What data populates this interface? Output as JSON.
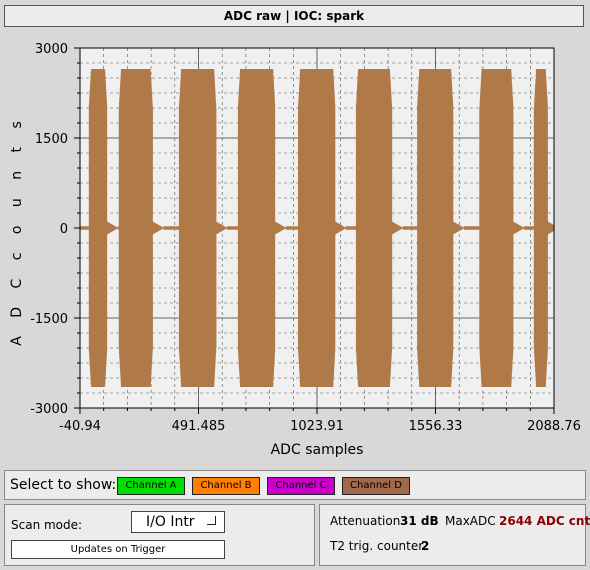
{
  "window": {
    "title": "ADC raw | IOC: spark"
  },
  "chart_data": {
    "type": "line",
    "title": "",
    "xlabel": "ADC samples",
    "ylabel": "A D C   c o u n t s",
    "xlim": [
      -40.94,
      2088.76
    ],
    "ylim": [
      -3000,
      3000
    ],
    "x_ticks": [
      "-40.94",
      "491.485",
      "1023.91",
      "1556.33",
      "2088.76"
    ],
    "y_ticks": [
      "3000",
      "1500",
      "0",
      "-1500",
      "-3000"
    ],
    "grid": true,
    "color": "#b07a48",
    "series": [
      {
        "amplitude": 2650,
        "bursts": [
          [
            0,
            80
          ],
          [
            135,
            285
          ],
          [
            405,
            570
          ],
          [
            670,
            835
          ],
          [
            940,
            1105
          ],
          [
            1200,
            1360
          ],
          [
            1475,
            1635
          ],
          [
            1755,
            1905
          ],
          [
            2000,
            2060
          ]
        ]
      }
    ]
  },
  "select": {
    "label": "Select to show:",
    "channels": [
      {
        "label": "Channel A",
        "bg": "#00dd00"
      },
      {
        "label": "Channel B",
        "bg": "#ff8000"
      },
      {
        "label": "Channel C",
        "bg": "#cc00cc"
      },
      {
        "label": "Channel D",
        "bg": "#a0694a"
      }
    ]
  },
  "scan": {
    "label": "Scan mode:",
    "mode": "I/O Intr",
    "trigger_label": "Updates on Trigger"
  },
  "stats": {
    "attenuation_label": "Attenuation",
    "attenuation_value": "31 dB",
    "maxadc_label": "MaxADC",
    "maxadc_value": "2644 ADC cnt",
    "t2_label": "T2 trig. counter",
    "t2_value": "2"
  }
}
